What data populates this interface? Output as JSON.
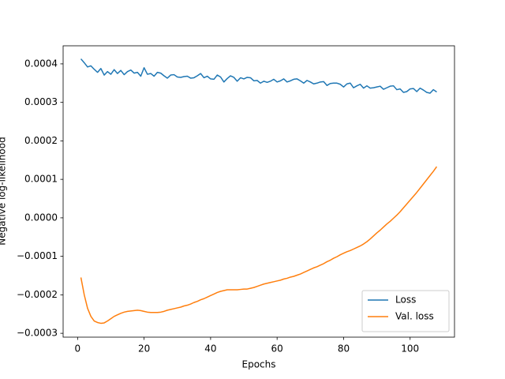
{
  "chart_data": {
    "type": "line",
    "xlabel": "Epochs",
    "ylabel": "Negative log-likelihood",
    "x": [
      1,
      2,
      3,
      4,
      5,
      6,
      7,
      8,
      9,
      10,
      11,
      12,
      13,
      14,
      15,
      16,
      17,
      18,
      19,
      20,
      21,
      22,
      23,
      24,
      25,
      26,
      27,
      28,
      29,
      30,
      31,
      32,
      33,
      34,
      35,
      36,
      37,
      38,
      39,
      40,
      41,
      42,
      43,
      44,
      45,
      46,
      47,
      48,
      49,
      50,
      51,
      52,
      53,
      54,
      55,
      56,
      57,
      58,
      59,
      60,
      61,
      62,
      63,
      64,
      65,
      66,
      67,
      68,
      69,
      70,
      71,
      72,
      73,
      74,
      75,
      76,
      77,
      78,
      79,
      80,
      81,
      82,
      83,
      84,
      85,
      86,
      87,
      88,
      89,
      90,
      91,
      92,
      93,
      94,
      95,
      96,
      97,
      98,
      99,
      100,
      101,
      102,
      103,
      104,
      105,
      106,
      107,
      108
    ],
    "series": [
      {
        "name": "Loss",
        "color": "#1f77b4",
        "values": [
          0.000413,
          0.000403,
          0.000392,
          0.000395,
          0.000386,
          0.000378,
          0.000388,
          0.000371,
          0.00038,
          0.000373,
          0.000385,
          0.000375,
          0.000383,
          0.000372,
          0.00038,
          0.000384,
          0.000376,
          0.000378,
          0.000368,
          0.00039,
          0.000373,
          0.000375,
          0.000368,
          0.000378,
          0.000376,
          0.000369,
          0.000363,
          0.000371,
          0.000372,
          0.000366,
          0.000365,
          0.000367,
          0.000368,
          0.000363,
          0.000364,
          0.000369,
          0.000375,
          0.000364,
          0.000368,
          0.000361,
          0.00036,
          0.000371,
          0.000366,
          0.000353,
          0.000362,
          0.000369,
          0.000365,
          0.000355,
          0.000364,
          0.000361,
          0.000365,
          0.000364,
          0.000356,
          0.000357,
          0.00035,
          0.000355,
          0.000352,
          0.000355,
          0.00036,
          0.000353,
          0.000356,
          0.000361,
          0.000353,
          0.000356,
          0.00036,
          0.000361,
          0.000356,
          0.00035,
          0.000357,
          0.000353,
          0.000348,
          0.00035,
          0.000353,
          0.000354,
          0.000344,
          0.000349,
          0.00035,
          0.00035,
          0.000347,
          0.00034,
          0.000348,
          0.00035,
          0.000338,
          0.000343,
          0.000347,
          0.000337,
          0.000343,
          0.000337,
          0.000338,
          0.00034,
          0.000342,
          0.000334,
          0.000338,
          0.000342,
          0.000343,
          0.000333,
          0.000335,
          0.000326,
          0.000328,
          0.000335,
          0.000336,
          0.000328,
          0.000337,
          0.000332,
          0.000326,
          0.000324,
          0.000333,
          0.000327
        ]
      },
      {
        "name": "Val. loss",
        "color": "#ff7f0e",
        "values": [
          -0.000155,
          -0.0002,
          -0.000235,
          -0.000256,
          -0.000268,
          -0.000272,
          -0.000274,
          -0.000273,
          -0.000268,
          -0.000262,
          -0.000256,
          -0.000252,
          -0.000248,
          -0.000245,
          -0.000243,
          -0.000242,
          -0.000241,
          -0.00024,
          -0.000241,
          -0.000243,
          -0.000245,
          -0.000246,
          -0.000246,
          -0.000246,
          -0.000245,
          -0.000243,
          -0.00024,
          -0.000238,
          -0.000236,
          -0.000234,
          -0.000232,
          -0.000229,
          -0.000227,
          -0.000224,
          -0.00022,
          -0.000217,
          -0.000213,
          -0.00021,
          -0.000206,
          -0.000202,
          -0.000198,
          -0.000194,
          -0.000191,
          -0.000189,
          -0.000187,
          -0.000187,
          -0.000187,
          -0.000187,
          -0.000186,
          -0.000185,
          -0.000185,
          -0.000183,
          -0.000181,
          -0.000178,
          -0.000175,
          -0.000172,
          -0.00017,
          -0.000168,
          -0.000166,
          -0.000164,
          -0.000162,
          -0.000159,
          -0.000157,
          -0.000154,
          -0.000152,
          -0.000149,
          -0.000146,
          -0.000142,
          -0.000138,
          -0.000134,
          -0.00013,
          -0.000127,
          -0.000123,
          -0.000119,
          -0.000114,
          -0.00011,
          -0.000105,
          -0.000101,
          -9.6e-05,
          -9.2e-05,
          -8.8e-05,
          -8.5e-05,
          -8.1e-05,
          -7.7e-05,
          -7.3e-05,
          -6.8e-05,
          -6.2e-05,
          -5.5e-05,
          -4.7e-05,
          -3.9e-05,
          -3.2e-05,
          -2.4e-05,
          -1.6e-05,
          -9e-06,
          -1e-06,
          7e-06,
          1.6e-05,
          2.6e-05,
          3.6e-05,
          4.6e-05,
          5.6e-05,
          6.6e-05,
          7.7e-05,
          8.8e-05,
          9.9e-05,
          0.00011,
          0.000121,
          0.000133
        ]
      }
    ],
    "xlim": [
      -4.35,
      113.35
    ],
    "xticks": [
      0,
      20,
      40,
      60,
      80,
      100
    ],
    "ylim": [
      -0.00031,
      0.000447
    ],
    "yticks": [
      {
        "value": -0.0003,
        "label": "−0.0003"
      },
      {
        "value": -0.0002,
        "label": "−0.0002"
      },
      {
        "value": -0.0001,
        "label": "−0.0001"
      },
      {
        "value": 0,
        "label": "0.0000"
      },
      {
        "value": 0.0001,
        "label": "0.0001"
      },
      {
        "value": 0.0002,
        "label": "0.0002"
      },
      {
        "value": 0.0003,
        "label": "0.0003"
      },
      {
        "value": 0.0004,
        "label": "0.0004"
      }
    ],
    "grid": false,
    "legend": "lower right"
  }
}
